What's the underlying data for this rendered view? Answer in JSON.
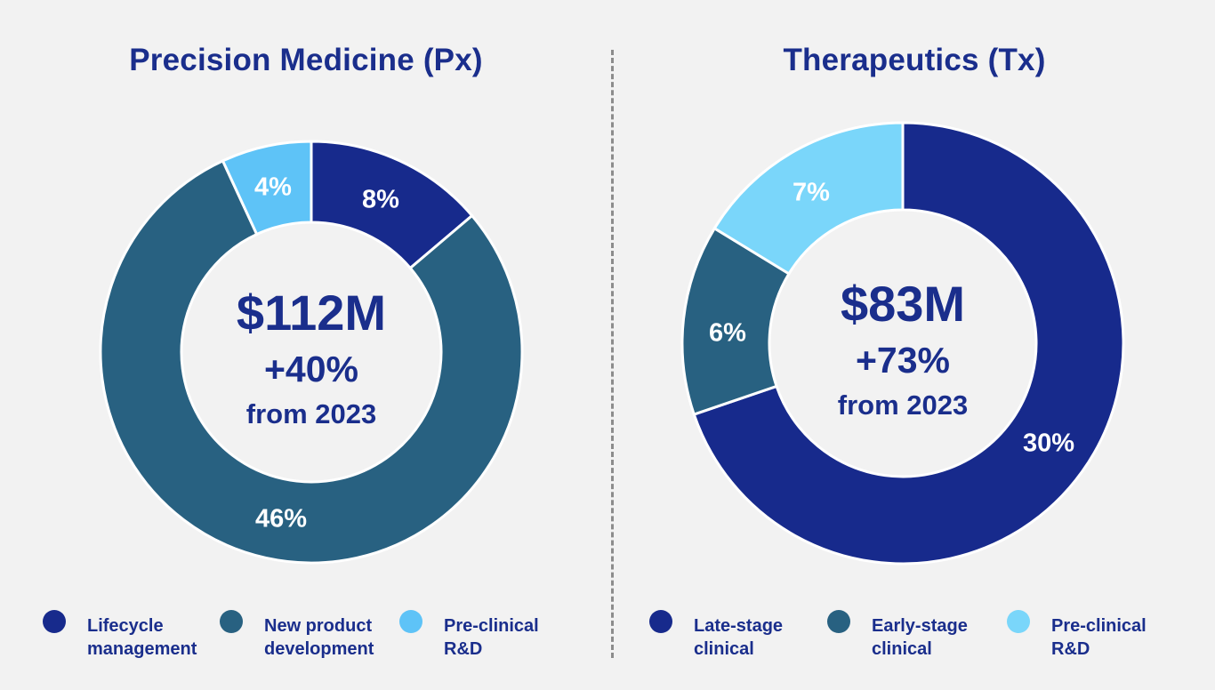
{
  "chart_data": [
    {
      "type": "pie",
      "title": "Precision Medicine (Px)",
      "center_amount": "$112M",
      "center_growth": "+40%",
      "center_period": "from 2023",
      "categories": [
        "Lifecycle management",
        "New product development",
        "Pre-clinical R&D"
      ],
      "values": [
        8,
        46,
        4
      ],
      "value_labels": [
        "8%",
        "46%",
        "4%"
      ],
      "colors": [
        "#172a8c",
        "#286181",
        "#5ec3f7"
      ],
      "legend_placement": "bottom"
    },
    {
      "type": "pie",
      "title": "Therapeutics (Tx)",
      "center_amount": "$83M",
      "center_growth": "+73%",
      "center_period": "from 2023",
      "categories": [
        "Late-stage clinical",
        "Early-stage clinical",
        "Pre-clinical R&D"
      ],
      "values": [
        30,
        6,
        7
      ],
      "value_labels": [
        "30%",
        "6%",
        "7%"
      ],
      "colors": [
        "#172a8c",
        "#286181",
        "#7ad6fa"
      ],
      "legend_placement": "bottom"
    }
  ],
  "legend_labels": [
    [
      "Lifecycle management",
      "New product development",
      "Pre-clinical R&D"
    ],
    [
      "Late-stage clinical",
      "Early-stage clinical",
      "Pre-clinical R&D"
    ]
  ],
  "colors": {
    "title": "#1a2e8c",
    "background": "#f2f2f2",
    "divider": "#8c8c8c"
  }
}
